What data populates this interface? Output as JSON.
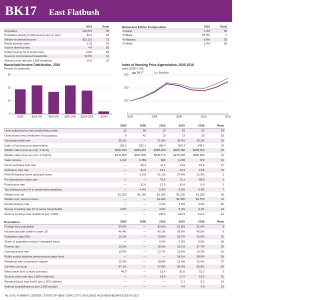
{
  "header": {
    "code": "BK17",
    "name": "East Flatbush"
  },
  "summary_left": {
    "columns": [
      "2016",
      "Rank"
    ],
    "rows": [
      [
        "Population",
        "135,075",
        "35"
      ],
      [
        "Population density (1,000 persons per sq. mile)",
        "50.2",
        "18"
      ],
      [
        "Median household income",
        "$51,110",
        "31"
      ],
      [
        "Racial diversity index",
        "0.32",
        "54"
      ],
      [
        "Income diversity ratio",
        "4.4",
        "50"
      ],
      [
        "Public housing (% of rental units)",
        "0.0%",
        "50"
      ],
      [
        "Severely rent-burdened households",
        "32.9%",
        "12"
      ],
      [
        "Serious crime rate (per 1,000 residents)",
        "16.5",
        "32"
      ]
    ]
  },
  "summary_right": {
    "title": "Racial and Ethnic Composition",
    "columns": [
      "2016",
      "Rank"
    ],
    "rows": [
      [
        "% Asian",
        "1.3%",
        "50"
      ],
      [
        "% Black",
        "87.8%",
        "1"
      ],
      [
        "% Hispanic",
        "6.9%",
        "55"
      ],
      [
        "% White",
        "2.0%",
        "58"
      ]
    ]
  },
  "charts": [
    {
      "type": "bar",
      "title": "Household Income Distribution, 2016",
      "subtitle": "Percent of households",
      "categories": [
        "<$20K",
        "$20K-40K",
        "$40K-60K",
        "$60K-100K",
        "$100K-250K",
        ">$250K"
      ],
      "values": [
        19,
        22,
        17,
        22,
        18,
        2
      ],
      "color": "#7b2a7e",
      "ylim": [
        0,
        30
      ],
      "yticks": [
        0,
        10,
        20,
        30
      ],
      "grid": true
    },
    {
      "type": "line",
      "title": "Index of Housing Price Appreciation, 2000-2016",
      "subtitle": "Index (2000 = 100)",
      "x": [
        2000,
        2002,
        2004,
        2006,
        2008,
        2010,
        2012,
        2014,
        2016
      ],
      "xlim": [
        2000,
        2016
      ],
      "xticks": [
        2000,
        2004,
        2008,
        2012,
        2016
      ],
      "ylim": [
        0,
        300
      ],
      "yticks": [
        0,
        100,
        200,
        300
      ],
      "grid": true,
      "series": [
        {
          "name": "BK17",
          "color": "#7b2a7e",
          "values": [
            100,
            126,
            168,
            232,
            218,
            186,
            178,
            205,
            248
          ]
        },
        {
          "name": "Brooklyn",
          "color": "#9a9a9a",
          "values": [
            100,
            130,
            175,
            240,
            230,
            200,
            196,
            230,
            275
          ]
        }
      ]
    }
  ],
  "main_table": {
    "columns": [
      "2000",
      "2006",
      "2010",
      "2015",
      "2016",
      "Rank"
    ],
    "rows": [
      [
        "Units authorized by new residential permits",
        "26",
        "95",
        "10",
        "33",
        "52",
        "54"
      ],
      [
        "Units issued new certificates of occupancy",
        "8",
        "42",
        "19",
        "13",
        "20",
        "53"
      ],
      [
        "Homeownership rate",
        "35.2%",
        "—",
        "31.5%",
        "29.5%",
        "30.1%",
        "26"
      ],
      [
        "Index of housing price appreciation",
        "100.0",
        "232.1",
        "186.4",
        "205.3",
        "248.1",
        "24"
      ],
      [
        "Median sales price per unit, 1 family",
        "$282,480",
        "$483,010",
        "$385,300",
        "$405,180",
        "$455,000",
        "32"
      ],
      [
        "Median sales price per unit, 2-4 family",
        "$176,960",
        "$327,800",
        "$246,170",
        "$270,000",
        "$300,000",
        "31"
      ],
      [
        "Sales volume",
        "1,211",
        "1,389",
        "606",
        "1,006",
        "972",
        "13"
      ],
      [
        "Home purchase loan rate",
        "—",
        "45.3",
        "11.4",
        "14.9",
        "16.6",
        "47"
      ],
      [
        "Refinance loan rate",
        "—",
        "91.8",
        "18.1",
        "15.4",
        "19.8",
        "34"
      ],
      [
        "FHA/VA-backed home purchase loans",
        "—",
        "2.2%",
        "41.1%",
        "27.4%",
        "22.6%",
        "2"
      ],
      [
        "Pre-foreclosure notice rate",
        "—",
        "—",
        "70.9",
        "71.1",
        "68.0",
        "3"
      ],
      [
        "Foreclosure rate",
        "—",
        "11.4",
        "13.9",
        "10.4",
        "6.4",
        "2"
      ],
      [
        "Tax delinquencies (% of residential properties)",
        "—",
        "4.4%",
        "5.6%",
        "4.5%",
        "4.4%",
        "7"
      ],
      [
        "Median rent, all",
        "$1,020",
        "$1,140",
        "$1,200",
        "$1,230",
        "$1,280",
        "35"
      ],
      [
        "Median rent, recent movers",
        "—",
        "—",
        "$1,400",
        "$1,550",
        "$1,570",
        "32"
      ],
      [
        "Rental vacancy rate",
        "—",
        "—",
        "3.1%",
        "3.5%",
        "3.3%",
        "25"
      ],
      [
        "Severe crowding rate (% of renter households)",
        "4.5%",
        "—",
        "4.0%",
        "5.4%",
        "4.1%",
        "34"
      ],
      [
        "Serious housing code violations (per 1,000)",
        "—",
        "—",
        "140.5",
        "122.9",
        "111.2",
        "12"
      ]
    ]
  },
  "second_table": {
    "title": "Population",
    "columns": [
      "2000",
      "2006",
      "2010",
      "2015",
      "2016",
      "Rank"
    ],
    "rows": [
      [
        "Foreign-born population",
        "54.2%",
        "—",
        "52.6%",
        "51.8%",
        "51.6%",
        "9"
      ],
      [
        "Households with children under 18",
        "46.4%",
        "—",
        "40.1%",
        "39.6%",
        "40.0%",
        "9"
      ],
      [
        "Population aged 65+",
        "10.2%",
        "—",
        "13.5%",
        "15.2%",
        "15.6%",
        "22"
      ],
      [
        "Share of population living in integrated tracts",
        "—",
        "—",
        "0.0%",
        "0.0%",
        "0.0%",
        "56"
      ],
      [
        "Poverty rate",
        "19.3%",
        "—",
        "18.6%",
        "19.1%",
        "17.7%",
        "35"
      ],
      [
        "Unemployment rate",
        "10.6%",
        "—",
        "13.7%",
        "11.5%",
        "10.2%",
        "10"
      ],
      [
        "Public school students performing at grade level",
        "—",
        "—",
        "—",
        "34.1%",
        "38.0%",
        "30"
      ],
      [
        "Residents with a bachelor's degree",
        "15.3%",
        "—",
        "18.8%",
        "21.4%",
        "22.4%",
        "37"
      ],
      [
        "Car-free commute",
        "57.1%",
        "—",
        "57.9%",
        "56.0%",
        "55.6%",
        "35"
      ],
      [
        "Mean travel time to work (minutes)",
        "49.9",
        "—",
        "51.4",
        "51.6",
        "51.7",
        "3"
      ],
      [
        "Serious crime rate (per 1,000 residents)",
        "—",
        "—",
        "18.9",
        "17.2",
        "16.5",
        "32"
      ],
      [
        "Elevated blood lead levels (per 1,000 children)",
        "—",
        "—",
        "—",
        "5.1",
        "5.0",
        "14"
      ],
      [
        "Asthma hospitalizations (per 1,000 people)",
        "—",
        "—",
        "—",
        "4.9",
        "4.8",
        "19"
      ]
    ]
  },
  "footer": "46 | NYU FURMAN CENTER | STATE OF NEW YORK CITY'S HOUSING AND NEIGHBORHOODS IN 2017"
}
